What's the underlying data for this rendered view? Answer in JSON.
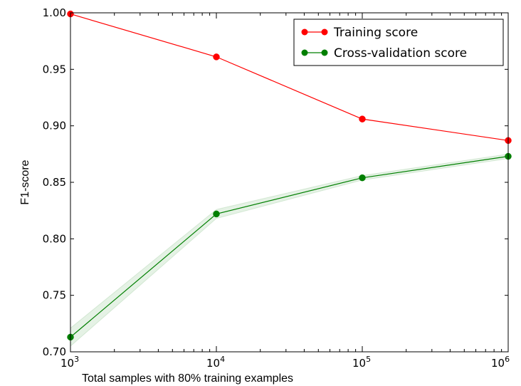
{
  "chart_data": {
    "type": "line",
    "xscale": "log",
    "x": [
      1000,
      10000,
      100000,
      1000000
    ],
    "x_tick_labels": [
      {
        "base": "10",
        "exp": "3"
      },
      {
        "base": "10",
        "exp": "4"
      },
      {
        "base": "10",
        "exp": "5"
      },
      {
        "base": "10",
        "exp": "6"
      }
    ],
    "y_ticks": [
      0.7,
      0.75,
      0.8,
      0.85,
      0.9,
      0.95,
      1.0
    ],
    "y_tick_labels": [
      "0.70",
      "0.75",
      "0.80",
      "0.85",
      "0.90",
      "0.95",
      "1.00"
    ],
    "xlim": [
      1000,
      1000000
    ],
    "ylim": [
      0.7,
      1.0
    ],
    "xlabel": "Total samples with 80% training examples",
    "ylabel": "F1-score",
    "grid": false,
    "legend_position": "top-right",
    "series": [
      {
        "name": "Training score",
        "color": "#ff0000",
        "values": [
          0.999,
          0.961,
          0.906,
          0.887
        ],
        "band": [
          0.0,
          0.0,
          0.0,
          0.0
        ]
      },
      {
        "name": "Cross-validation score",
        "color": "#007f00",
        "values": [
          0.713,
          0.822,
          0.854,
          0.873
        ],
        "band": [
          0.008,
          0.004,
          0.002,
          0.002
        ]
      }
    ]
  }
}
